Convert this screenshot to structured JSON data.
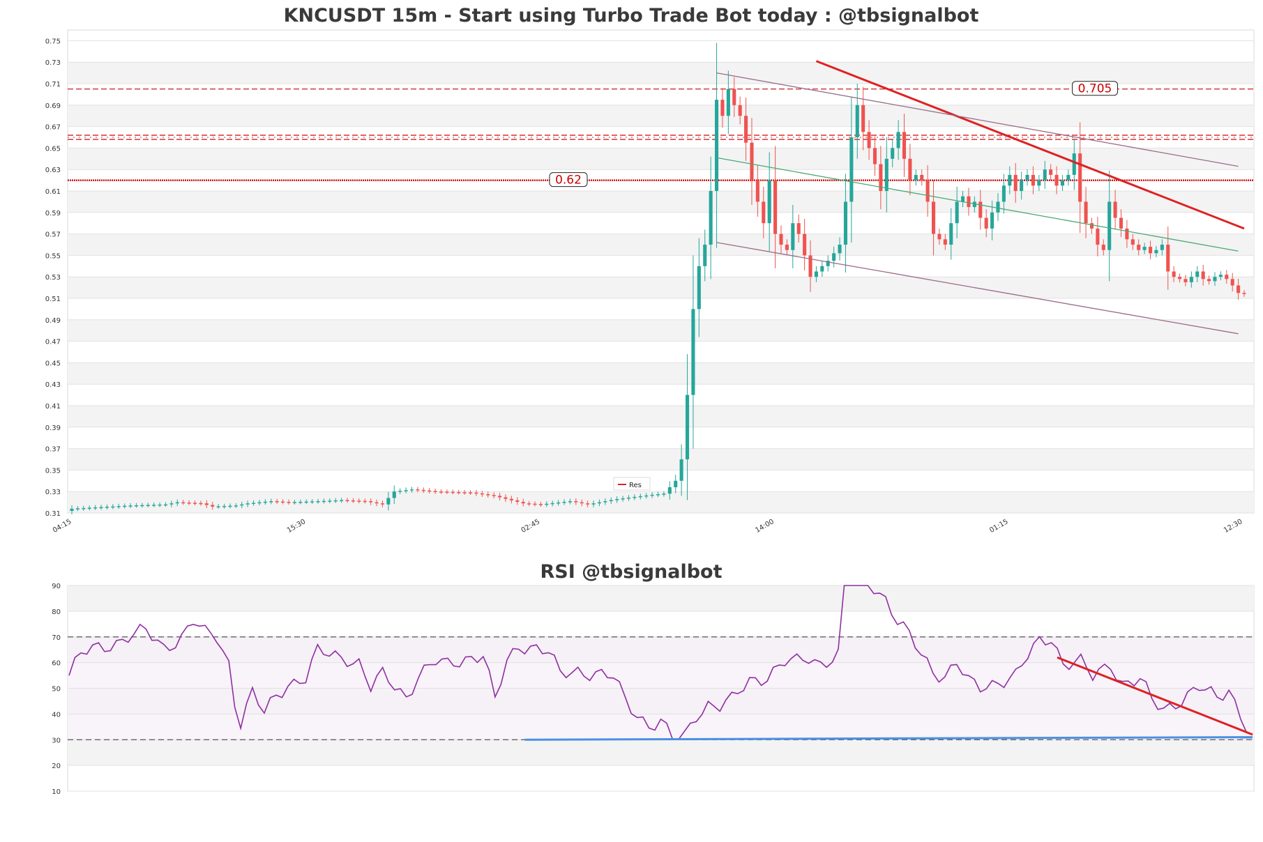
{
  "chart_data": [
    {
      "type": "candlestick",
      "title": "KNCUSDT 15m - Start using Turbo Trade Bot today : @tbsignalbot",
      "xlabel": "",
      "ylabel": "",
      "ylim": [
        0.31,
        0.76
      ],
      "y_ticks": [
        "0.31",
        "0.33",
        "0.35",
        "0.37",
        "0.39",
        "0.41",
        "0.43",
        "0.45",
        "0.47",
        "0.49",
        "0.51",
        "0.53",
        "0.55",
        "0.57",
        "0.59",
        "0.61",
        "0.63",
        "0.65",
        "0.67",
        "0.69",
        "0.71",
        "0.73",
        "0.75"
      ],
      "x_ticks": [
        "04:15",
        "15:30",
        "02:45",
        "14:00",
        "01:15",
        "12:30"
      ],
      "bar_count": 201,
      "grid": true,
      "legend": {
        "placement": "center-bottom",
        "entries": [
          {
            "name": "Res",
            "color": "#dd2222"
          }
        ]
      },
      "colors": {
        "up": "#26a69a",
        "down": "#ef5350"
      },
      "candle_anchor_closes": [
        [
          0,
          0.314
        ],
        [
          10,
          0.317
        ],
        [
          16,
          0.318
        ],
        [
          18,
          0.32
        ],
        [
          22,
          0.319
        ],
        [
          24,
          0.316
        ],
        [
          28,
          0.317
        ],
        [
          30,
          0.319
        ],
        [
          34,
          0.321
        ],
        [
          37,
          0.32
        ],
        [
          42,
          0.321
        ],
        [
          46,
          0.322
        ],
        [
          50,
          0.321
        ],
        [
          53,
          0.318
        ],
        [
          55,
          0.33
        ],
        [
          58,
          0.332
        ],
        [
          62,
          0.33
        ],
        [
          68,
          0.329
        ],
        [
          72,
          0.326
        ],
        [
          77,
          0.319
        ],
        [
          80,
          0.318
        ],
        [
          85,
          0.321
        ],
        [
          88,
          0.318
        ],
        [
          90,
          0.32
        ],
        [
          93,
          0.323
        ],
        [
          96,
          0.325
        ],
        [
          99,
          0.327
        ],
        [
          101,
          0.328
        ],
        [
          103,
          0.34
        ],
        [
          104,
          0.36
        ],
        [
          105,
          0.42
        ],
        [
          106,
          0.5
        ],
        [
          107,
          0.54
        ],
        [
          108,
          0.56
        ],
        [
          109,
          0.61
        ],
        [
          110,
          0.695
        ],
        [
          111,
          0.68
        ],
        [
          112,
          0.705
        ],
        [
          113,
          0.69
        ],
        [
          114,
          0.68
        ],
        [
          115,
          0.655
        ],
        [
          116,
          0.62
        ],
        [
          117,
          0.6
        ],
        [
          118,
          0.58
        ],
        [
          119,
          0.62
        ],
        [
          120,
          0.57
        ],
        [
          121,
          0.56
        ],
        [
          122,
          0.555
        ],
        [
          123,
          0.58
        ],
        [
          124,
          0.57
        ],
        [
          125,
          0.55
        ],
        [
          126,
          0.53
        ],
        [
          127,
          0.535
        ],
        [
          128,
          0.54
        ],
        [
          129,
          0.545
        ],
        [
          130,
          0.552
        ],
        [
          131,
          0.56
        ],
        [
          132,
          0.6
        ],
        [
          133,
          0.66
        ],
        [
          134,
          0.69
        ],
        [
          135,
          0.665
        ],
        [
          136,
          0.65
        ],
        [
          137,
          0.635
        ],
        [
          138,
          0.61
        ],
        [
          139,
          0.64
        ],
        [
          140,
          0.65
        ],
        [
          141,
          0.665
        ],
        [
          142,
          0.64
        ],
        [
          143,
          0.62
        ],
        [
          144,
          0.625
        ],
        [
          145,
          0.62
        ],
        [
          146,
          0.6
        ],
        [
          147,
          0.57
        ],
        [
          148,
          0.565
        ],
        [
          149,
          0.56
        ],
        [
          150,
          0.58
        ],
        [
          151,
          0.6
        ],
        [
          152,
          0.605
        ],
        [
          153,
          0.595
        ],
        [
          154,
          0.6
        ],
        [
          155,
          0.585
        ],
        [
          156,
          0.575
        ],
        [
          157,
          0.59
        ],
        [
          158,
          0.6
        ],
        [
          159,
          0.615
        ],
        [
          160,
          0.625
        ],
        [
          161,
          0.61
        ],
        [
          162,
          0.62
        ],
        [
          163,
          0.625
        ],
        [
          164,
          0.615
        ],
        [
          165,
          0.62
        ],
        [
          166,
          0.63
        ],
        [
          167,
          0.625
        ],
        [
          168,
          0.615
        ],
        [
          169,
          0.62
        ],
        [
          170,
          0.625
        ],
        [
          171,
          0.645
        ],
        [
          172,
          0.6
        ],
        [
          173,
          0.58
        ],
        [
          174,
          0.575
        ],
        [
          175,
          0.56
        ],
        [
          176,
          0.555
        ],
        [
          177,
          0.6
        ],
        [
          178,
          0.585
        ],
        [
          179,
          0.575
        ],
        [
          180,
          0.565
        ],
        [
          181,
          0.56
        ],
        [
          182,
          0.555
        ],
        [
          183,
          0.558
        ],
        [
          184,
          0.552
        ],
        [
          185,
          0.555
        ],
        [
          186,
          0.56
        ],
        [
          187,
          0.535
        ],
        [
          188,
          0.53
        ],
        [
          189,
          0.528
        ],
        [
          190,
          0.525
        ],
        [
          191,
          0.53
        ],
        [
          192,
          0.535
        ],
        [
          193,
          0.528
        ],
        [
          194,
          0.526
        ],
        [
          195,
          0.53
        ],
        [
          196,
          0.532
        ],
        [
          197,
          0.528
        ],
        [
          198,
          0.522
        ],
        [
          199,
          0.515
        ],
        [
          200,
          0.514
        ]
      ],
      "horizontal_levels": [
        {
          "value": 0.62,
          "label": "0.62",
          "style": "dotted"
        },
        {
          "value": 0.66,
          "label": "",
          "style": "dashed-band"
        },
        {
          "value": 0.705,
          "label": "0.705",
          "style": "dashed"
        }
      ],
      "trendlines": [
        {
          "name": "resistance",
          "color": "#dd2222",
          "points": [
            [
              127,
              0.731
            ],
            [
              200,
              0.575
            ]
          ]
        },
        {
          "name": "channel-top",
          "color": "#9b6b88",
          "points": [
            [
              110,
              0.72
            ],
            [
              199,
              0.633
            ]
          ]
        },
        {
          "name": "channel-mid",
          "color": "#4aa874",
          "points": [
            [
              110,
              0.641
            ],
            [
              199,
              0.554
            ]
          ]
        },
        {
          "name": "channel-bottom",
          "color": "#9b6b88",
          "points": [
            [
              110,
              0.562
            ],
            [
              199,
              0.477
            ]
          ]
        }
      ]
    },
    {
      "type": "line",
      "title": "RSI @tbsignalbot",
      "xlabel": "",
      "ylabel": "",
      "ylim": [
        10,
        90
      ],
      "y_ticks": [
        "10",
        "20",
        "30",
        "40",
        "50",
        "60",
        "70",
        "80",
        "90"
      ],
      "levels": [
        30,
        70
      ],
      "line_color": "#8e2fa0",
      "rsi_anchor_values": [
        [
          0,
          55
        ],
        [
          2,
          63
        ],
        [
          5,
          66
        ],
        [
          8,
          68
        ],
        [
          10,
          70
        ],
        [
          13,
          72
        ],
        [
          16,
          66
        ],
        [
          19,
          70
        ],
        [
          21,
          76
        ],
        [
          23,
          71
        ],
        [
          25,
          70
        ],
        [
          27,
          60
        ],
        [
          28,
          45
        ],
        [
          29,
          37
        ],
        [
          31,
          48
        ],
        [
          33,
          40
        ],
        [
          35,
          47
        ],
        [
          37,
          52
        ],
        [
          40,
          54
        ],
        [
          42,
          64
        ],
        [
          44,
          63
        ],
        [
          47,
          62
        ],
        [
          49,
          60
        ],
        [
          51,
          50
        ],
        [
          53,
          55
        ],
        [
          55,
          51
        ],
        [
          57,
          47
        ],
        [
          59,
          55
        ],
        [
          62,
          60
        ],
        [
          64,
          59
        ],
        [
          67,
          62
        ],
        [
          70,
          63
        ],
        [
          72,
          45
        ],
        [
          74,
          60
        ],
        [
          76,
          67
        ],
        [
          79,
          66
        ],
        [
          81,
          64
        ],
        [
          83,
          55
        ],
        [
          86,
          57
        ],
        [
          89,
          56
        ],
        [
          92,
          54
        ],
        [
          94,
          45
        ],
        [
          96,
          40
        ],
        [
          98,
          36
        ],
        [
          100,
          37
        ],
        [
          102,
          30
        ],
        [
          104,
          31
        ],
        [
          106,
          40
        ],
        [
          108,
          44
        ],
        [
          110,
          43
        ],
        [
          112,
          45
        ],
        [
          115,
          53
        ],
        [
          118,
          55
        ],
        [
          121,
          60
        ],
        [
          123,
          60
        ],
        [
          125,
          62
        ],
        [
          127,
          60
        ],
        [
          130,
          63
        ],
        [
          131,
          90
        ],
        [
          133,
          92
        ],
        [
          136,
          90
        ],
        [
          138,
          85
        ],
        [
          140,
          76
        ],
        [
          142,
          70
        ],
        [
          144,
          63
        ],
        [
          146,
          57
        ],
        [
          148,
          55
        ],
        [
          150,
          60
        ],
        [
          152,
          52
        ],
        [
          154,
          50
        ],
        [
          157,
          53
        ],
        [
          160,
          55
        ],
        [
          162,
          62
        ],
        [
          164,
          68
        ],
        [
          166,
          70
        ],
        [
          168,
          60
        ],
        [
          171,
          60
        ],
        [
          173,
          54
        ],
        [
          176,
          60
        ],
        [
          178,
          52
        ],
        [
          181,
          53
        ],
        [
          183,
          45
        ],
        [
          185,
          42
        ],
        [
          188,
          46
        ],
        [
          191,
          50
        ],
        [
          194,
          46
        ],
        [
          196,
          50
        ],
        [
          200,
          30
        ]
      ],
      "trendlines": [
        {
          "name": "rsi-resistance",
          "color": "#dd2222",
          "points": [
            [
              167,
              62
            ],
            [
              200,
              32
            ]
          ]
        },
        {
          "name": "rsi-support",
          "color": "#4a90e2",
          "points": [
            [
              77,
              30
            ],
            [
              200,
              31
            ]
          ]
        }
      ]
    }
  ]
}
